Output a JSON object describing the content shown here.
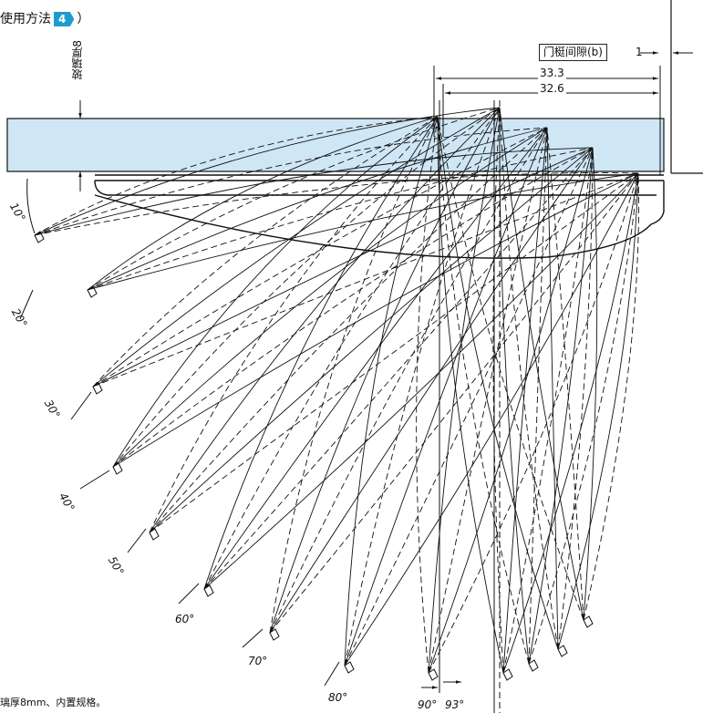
{
  "header": {
    "title_fragment": "",
    "usage_prefix": "使用方法",
    "usage_number": "4",
    "usage_suffix": "）"
  },
  "labels": {
    "glass_thickness": "玻璃厚8",
    "door_frame_gap": "门梃间隙(b)",
    "gap_value": "1",
    "dim_outer": "33.3",
    "dim_inner": "32.6",
    "note": "璃厚8mm、内置规格。"
  },
  "angles": [
    "10°",
    "20°",
    "30°",
    "40°",
    "50°",
    "60°",
    "70°",
    "80°",
    "90°",
    "93°"
  ],
  "colors": {
    "glass_fill": "#cfe6f5",
    "badge": "#1f9bd1",
    "line": "#111111"
  }
}
